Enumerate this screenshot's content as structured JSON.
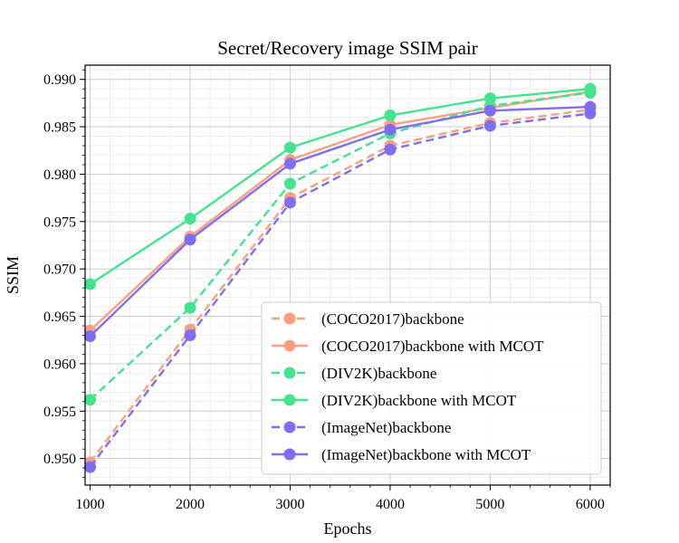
{
  "chart_data": {
    "type": "line",
    "title": "Secret/Recovery image SSIM pair",
    "xlabel": "Epochs",
    "ylabel": "SSIM",
    "x": [
      1000,
      2000,
      3000,
      4000,
      5000,
      6000
    ],
    "xlim": [
      950,
      6200
    ],
    "ylim": [
      0.9472,
      0.9915
    ],
    "xticks": [
      1000,
      2000,
      3000,
      4000,
      5000,
      6000
    ],
    "xtick_labels": [
      "1000",
      "2000",
      "3000",
      "4000",
      "5000",
      "6000"
    ],
    "yticks": [
      0.95,
      0.955,
      0.96,
      0.965,
      0.97,
      0.975,
      0.98,
      0.985,
      0.99
    ],
    "ytick_labels": [
      "0.950",
      "0.955",
      "0.960",
      "0.965",
      "0.970",
      "0.975",
      "0.980",
      "0.985",
      "0.990"
    ],
    "grid": true,
    "legend_position": "bottom-right",
    "series": [
      {
        "name": "(COCO2017)backbone",
        "color": "#fc9f7f",
        "style": "dashed",
        "values": [
          0.9496,
          0.9636,
          0.9775,
          0.983,
          0.9854,
          0.9868
        ]
      },
      {
        "name": "(COCO2017)backbone with MCOT",
        "color": "#fc9f7f",
        "style": "solid",
        "values": [
          0.9635,
          0.9734,
          0.9815,
          0.9852,
          0.987,
          0.9887
        ]
      },
      {
        "name": "(DIV2K)backbone",
        "color": "#43e48d",
        "style": "dashed",
        "values": [
          0.9562,
          0.9659,
          0.979,
          0.9843,
          0.9872,
          0.9886
        ]
      },
      {
        "name": "(DIV2K)backbone with MCOT",
        "color": "#43e48d",
        "style": "solid",
        "values": [
          0.9684,
          0.9753,
          0.9828,
          0.9862,
          0.988,
          0.989
        ]
      },
      {
        "name": "(ImageNet)backbone",
        "color": "#7f6ef2",
        "style": "dashed",
        "values": [
          0.9491,
          0.963,
          0.977,
          0.9826,
          0.9851,
          0.9864
        ]
      },
      {
        "name": "(ImageNet)backbone with MCOT",
        "color": "#7f6ef2",
        "style": "solid",
        "values": [
          0.9629,
          0.9731,
          0.9811,
          0.9847,
          0.9867,
          0.9871
        ]
      }
    ]
  }
}
